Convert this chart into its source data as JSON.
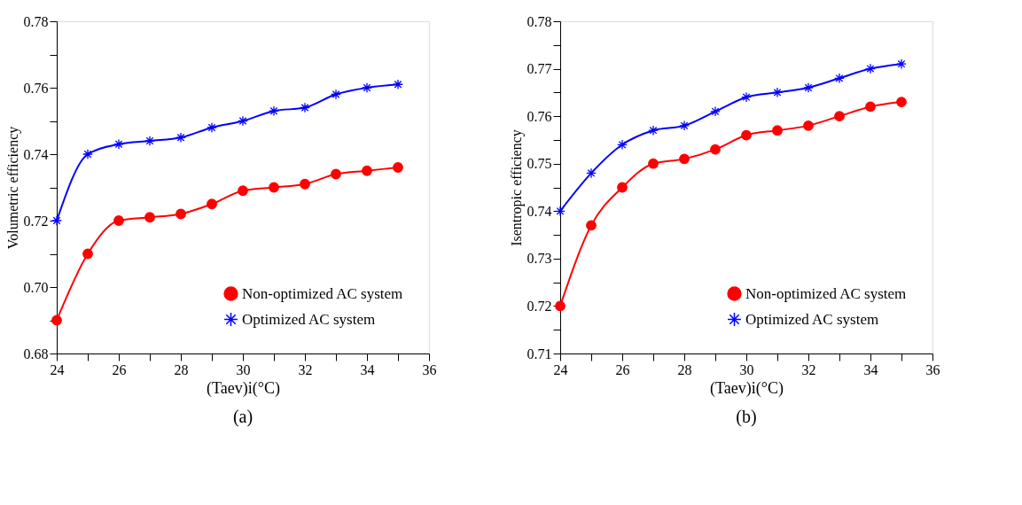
{
  "chart_data": [
    {
      "type": "line",
      "title": "(a)",
      "xlabel": "(Taev)i(°C)",
      "ylabel": "Volumetric efficiency",
      "x": [
        24,
        25,
        26,
        27,
        28,
        29,
        30,
        31,
        32,
        33,
        34,
        35
      ],
      "series": [
        {
          "name": "Non-optimized AC system",
          "color": "#ff0000",
          "marker": "circle",
          "values": [
            0.69,
            0.71,
            0.72,
            0.721,
            0.722,
            0.725,
            0.729,
            0.73,
            0.731,
            0.734,
            0.735,
            0.736
          ]
        },
        {
          "name": "Optimized AC system",
          "color": "#0000ff",
          "marker": "cross",
          "values": [
            0.72,
            0.74,
            0.743,
            0.744,
            0.745,
            0.748,
            0.75,
            0.753,
            0.754,
            0.758,
            0.76,
            0.761
          ]
        }
      ],
      "xlim": [
        24,
        36
      ],
      "ylim": [
        0.68,
        0.78
      ],
      "xticks": [
        24,
        {
          "value": 25,
          "label": null
        },
        26,
        {
          "value": 27,
          "label": null
        },
        28,
        {
          "value": 29,
          "label": null
        },
        30,
        {
          "value": 31,
          "label": null
        },
        32,
        {
          "value": 33,
          "label": null
        },
        34,
        {
          "value": 35,
          "label": null
        },
        36
      ],
      "yticks": [
        {
          "value": 0.68,
          "label": "0.68"
        },
        {
          "value": 0.69,
          "label": null
        },
        {
          "value": 0.7,
          "label": "0.70"
        },
        {
          "value": 0.71,
          "label": null
        },
        {
          "value": 0.72,
          "label": "0.72"
        },
        {
          "value": 0.73,
          "label": null
        },
        {
          "value": 0.74,
          "label": "0.74"
        },
        {
          "value": 0.75,
          "label": null
        },
        {
          "value": 0.76,
          "label": "0.76"
        },
        {
          "value": 0.77,
          "label": null
        },
        {
          "value": 0.78,
          "label": "0.78"
        }
      ],
      "grid": false,
      "legend": "bottom right",
      "line_style": "solid"
    },
    {
      "type": "line",
      "title": "(b)",
      "xlabel": "(Taev)i(°C)",
      "ylabel": "Isentropic efficiency",
      "x": [
        24,
        25,
        26,
        27,
        28,
        29,
        30,
        31,
        32,
        33,
        34,
        35
      ],
      "series": [
        {
          "name": "Non-optimized AC system",
          "color": "#ff0000",
          "marker": "circle",
          "values": [
            0.72,
            0.737,
            0.745,
            0.75,
            0.751,
            0.753,
            0.756,
            0.757,
            0.758,
            0.76,
            0.762,
            0.763
          ]
        },
        {
          "name": "Optimized AC system",
          "color": "#0000ff",
          "marker": "cross",
          "values": [
            0.74,
            0.748,
            0.754,
            0.757,
            0.758,
            0.761,
            0.764,
            0.765,
            0.766,
            0.768,
            0.77,
            0.771
          ]
        }
      ],
      "xlim": [
        24,
        36
      ],
      "ylim": [
        0.71,
        0.78
      ],
      "xticks": [
        24,
        {
          "value": 25,
          "label": null
        },
        26,
        {
          "value": 27,
          "label": null
        },
        28,
        {
          "value": 29,
          "label": null
        },
        30,
        {
          "value": 31,
          "label": null
        },
        32,
        {
          "value": 33,
          "label": null
        },
        34,
        {
          "value": 35,
          "label": null
        },
        36
      ],
      "yticks": [
        {
          "value": 0.71,
          "label": "0.71"
        },
        {
          "value": 0.715,
          "label": null
        },
        {
          "value": 0.72,
          "label": "0.72"
        },
        {
          "value": 0.725,
          "label": null
        },
        {
          "value": 0.73,
          "label": "0.73"
        },
        {
          "value": 0.735,
          "label": null
        },
        {
          "value": 0.74,
          "label": "0.74"
        },
        {
          "value": 0.745,
          "label": null
        },
        {
          "value": 0.75,
          "label": "0.75"
        },
        {
          "value": 0.755,
          "label": null
        },
        {
          "value": 0.76,
          "label": "0.76"
        },
        {
          "value": 0.765,
          "label": null
        },
        {
          "value": 0.77,
          "label": "0.77"
        },
        {
          "value": 0.775,
          "label": null
        },
        {
          "value": 0.78,
          "label": "0.78"
        }
      ],
      "grid": false,
      "legend": "bottom right",
      "line_style": "solid"
    }
  ]
}
